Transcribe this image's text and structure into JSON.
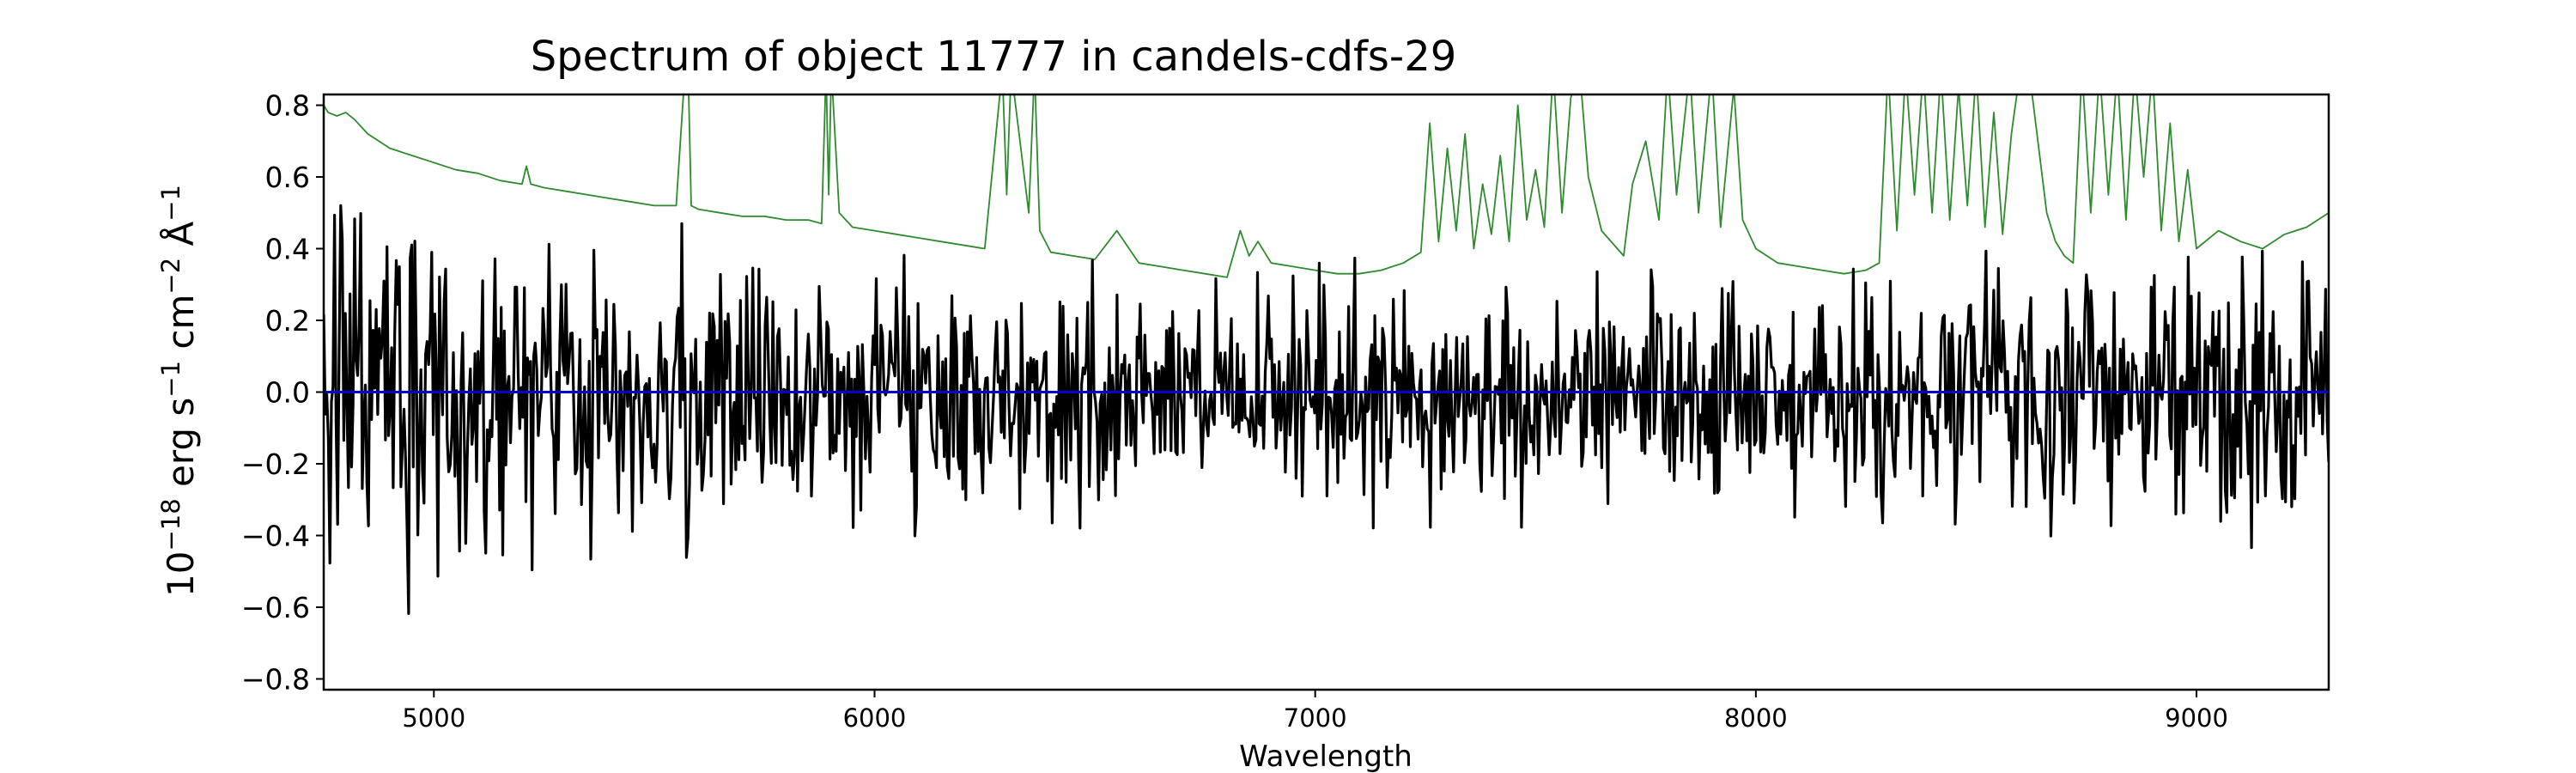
{
  "chart_data": {
    "type": "line",
    "title": "Spectrum of object 11777 in candels-cdfs-29",
    "xlabel": "Wavelength",
    "ylabel": {
      "base": "10",
      "exp1": "−18",
      "t1": " erg s",
      "exp2": "−1",
      "t2": " cm",
      "exp3": "−2",
      "t3": " Å",
      "exp4": "−1"
    },
    "xlim": [
      4750,
      9300
    ],
    "ylim": [
      -0.83,
      0.83
    ],
    "x_ticks": [
      5000,
      6000,
      7000,
      8000,
      9000
    ],
    "x_tick_labels": [
      "5000",
      "6000",
      "7000",
      "8000",
      "9000"
    ],
    "y_ticks": [
      -0.8,
      -0.6,
      -0.4,
      -0.2,
      0.0,
      0.2,
      0.4,
      0.6,
      0.8
    ],
    "y_tick_labels": [
      "−0.8",
      "−0.6",
      "−0.4",
      "−0.2",
      "0.0",
      "0.2",
      "0.4",
      "0.6",
      "0.8"
    ],
    "grid": false,
    "series": [
      {
        "color": "#2e8b2e",
        "x": [
          4750,
          4760,
          4780,
          4800,
          4820,
          4850,
          4900,
          4950,
          5000,
          5050,
          5100,
          5150,
          5200,
          5210,
          5220,
          5250,
          5300,
          5350,
          5400,
          5450,
          5500,
          5550,
          5570,
          5577,
          5584,
          5600,
          5650,
          5700,
          5750,
          5800,
          5850,
          5880,
          5890,
          5896,
          5902,
          5920,
          5950,
          6000,
          6050,
          6100,
          6150,
          6200,
          6250,
          6290,
          6300,
          6310,
          6350,
          6363,
          6375,
          6400,
          6450,
          6500,
          6550,
          6600,
          6650,
          6700,
          6750,
          6800,
          6830,
          6850,
          6870,
          6900,
          6950,
          7000,
          7050,
          7100,
          7150,
          7200,
          7240,
          7260,
          7280,
          7300,
          7320,
          7340,
          7360,
          7380,
          7400,
          7420,
          7440,
          7460,
          7480,
          7500,
          7520,
          7540,
          7560,
          7580,
          7600,
          7620,
          7650,
          7700,
          7720,
          7750,
          7780,
          7800,
          7820,
          7850,
          7870,
          7900,
          7920,
          7950,
          7970,
          8000,
          8050,
          8100,
          8150,
          8200,
          8250,
          8280,
          8300,
          8320,
          8340,
          8360,
          8380,
          8400,
          8420,
          8440,
          8460,
          8480,
          8500,
          8520,
          8540,
          8560,
          8580,
          8600,
          8620,
          8640,
          8660,
          8680,
          8700,
          8720,
          8740,
          8760,
          8780,
          8800,
          8820,
          8840,
          8860,
          8880,
          8900,
          8920,
          8940,
          8960,
          8980,
          9000,
          9050,
          9100,
          9150,
          9200,
          9250,
          9300
        ],
        "y": [
          0.8,
          0.78,
          0.77,
          0.78,
          0.76,
          0.72,
          0.68,
          0.66,
          0.64,
          0.62,
          0.61,
          0.59,
          0.58,
          0.63,
          0.58,
          0.57,
          0.56,
          0.55,
          0.54,
          0.53,
          0.52,
          0.52,
          0.9,
          0.9,
          0.52,
          0.51,
          0.5,
          0.49,
          0.49,
          0.48,
          0.48,
          0.47,
          0.9,
          0.55,
          0.9,
          0.5,
          0.46,
          0.45,
          0.44,
          0.43,
          0.42,
          0.41,
          0.4,
          0.9,
          0.55,
          0.9,
          0.5,
          0.9,
          0.45,
          0.39,
          0.38,
          0.37,
          0.45,
          0.36,
          0.35,
          0.34,
          0.33,
          0.32,
          0.45,
          0.38,
          0.42,
          0.36,
          0.35,
          0.34,
          0.33,
          0.33,
          0.34,
          0.36,
          0.39,
          0.75,
          0.42,
          0.68,
          0.45,
          0.72,
          0.4,
          0.58,
          0.44,
          0.66,
          0.42,
          0.8,
          0.48,
          0.62,
          0.46,
          0.9,
          0.5,
          0.82,
          0.9,
          0.6,
          0.45,
          0.38,
          0.58,
          0.7,
          0.48,
          0.9,
          0.55,
          0.9,
          0.5,
          0.9,
          0.46,
          0.85,
          0.48,
          0.4,
          0.36,
          0.35,
          0.34,
          0.33,
          0.34,
          0.36,
          0.9,
          0.45,
          0.9,
          0.55,
          0.9,
          0.5,
          0.9,
          0.48,
          0.85,
          0.52,
          0.9,
          0.46,
          0.78,
          0.44,
          0.72,
          0.9,
          0.9,
          0.7,
          0.5,
          0.42,
          0.38,
          0.36,
          0.9,
          0.5,
          0.9,
          0.55,
          0.9,
          0.48,
          0.9,
          0.6,
          0.9,
          0.45,
          0.75,
          0.42,
          0.62,
          0.4,
          0.45,
          0.42,
          0.4,
          0.44,
          0.46,
          0.5
        ]
      },
      {
        "color": "#000000",
        "noise": {
          "xmin": 4750,
          "xmax": 9300,
          "n": 1300,
          "amp_left": 0.3,
          "amp_mid": 0.17,
          "amp_right": 0.25,
          "seed": 11777
        }
      },
      {
        "color": "#0000cc",
        "x": [
          4750,
          9300
        ],
        "y": [
          0.0,
          0.0
        ]
      }
    ]
  }
}
